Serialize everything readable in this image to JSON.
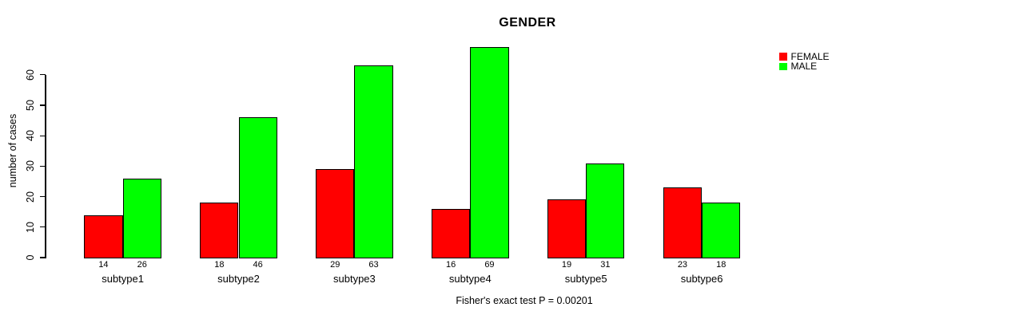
{
  "chart_data": {
    "type": "bar",
    "title": "GENDER",
    "ylabel": "number of cases",
    "xlabel": "",
    "caption": "Fisher's exact test P = 0.00201",
    "categories": [
      "subtype1",
      "subtype2",
      "subtype3",
      "subtype4",
      "subtype5",
      "subtype6"
    ],
    "series": [
      {
        "name": "FEMALE",
        "color": "#ff0000",
        "values": [
          14,
          18,
          29,
          16,
          19,
          23
        ]
      },
      {
        "name": "MALE",
        "color": "#00ff00",
        "values": [
          26,
          46,
          63,
          69,
          31,
          18
        ]
      }
    ],
    "bar_value_labels": [
      [
        14,
        26
      ],
      [
        18,
        46
      ],
      [
        29,
        63
      ],
      [
        16,
        69
      ],
      [
        19,
        31
      ],
      [
        23,
        18
      ]
    ],
    "yticks": [
      0,
      10,
      20,
      30,
      40,
      50,
      60
    ],
    "ylim": [
      0,
      69
    ],
    "grid": false,
    "legend_position": "top-right",
    "axis_color": "#000000",
    "background_color": "#ffffff"
  }
}
